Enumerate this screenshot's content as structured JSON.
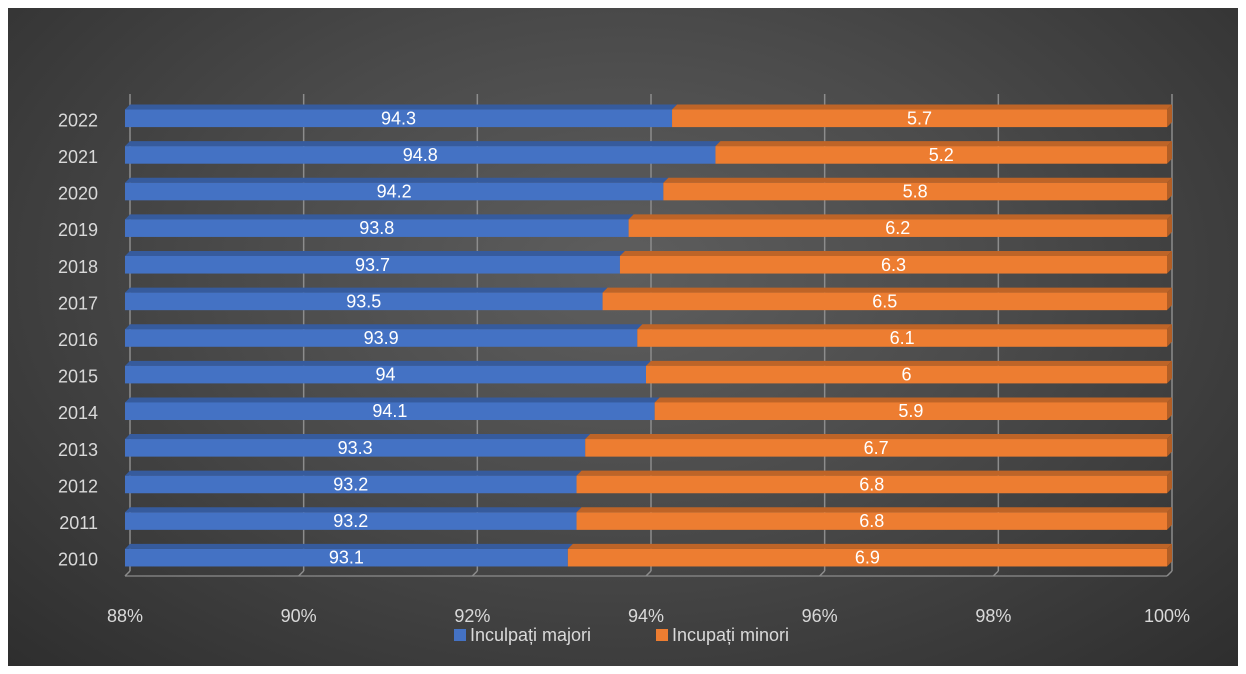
{
  "chart_data": {
    "type": "bar",
    "orientation": "horizontal",
    "stacking": "percent",
    "categories": [
      "2010",
      "2011",
      "2012",
      "2013",
      "2014",
      "2015",
      "2016",
      "2017",
      "2018",
      "2019",
      "2020",
      "2021",
      "2022"
    ],
    "series": [
      {
        "name": "Inculpați majori",
        "color": "#4472C4",
        "values": [
          93.1,
          93.2,
          93.2,
          93.3,
          94.1,
          94,
          93.9,
          93.5,
          93.7,
          93.8,
          94.2,
          94.8,
          94.3
        ]
      },
      {
        "name": "Incupați minori",
        "color": "#ED7D31",
        "values": [
          6.9,
          6.8,
          6.8,
          6.7,
          5.9,
          6,
          6.1,
          6.5,
          6.3,
          6.2,
          5.8,
          5.2,
          5.7
        ]
      }
    ],
    "data_labels": {
      "Inculpați majori": [
        "93.1",
        "93.2",
        "93.2",
        "93.3",
        "94.1",
        "94",
        "93.9",
        "93.5",
        "93.7",
        "93.8",
        "94.2",
        "94.8",
        "94.3"
      ],
      "Incupați minori": [
        "6.9",
        "6.8",
        "6.8",
        "6.7",
        "5.9",
        "6",
        "6.1",
        "6.5",
        "6.3",
        "6.2",
        "5.8",
        "5.2",
        "5.7"
      ]
    },
    "xlim": [
      88,
      100
    ],
    "xticks": [
      88,
      90,
      92,
      94,
      96,
      98,
      100
    ],
    "xtick_labels": [
      "88%",
      "90%",
      "92%",
      "94%",
      "96%",
      "98%",
      "100%"
    ],
    "grid": true,
    "legend_position": "bottom",
    "style": "3d"
  }
}
